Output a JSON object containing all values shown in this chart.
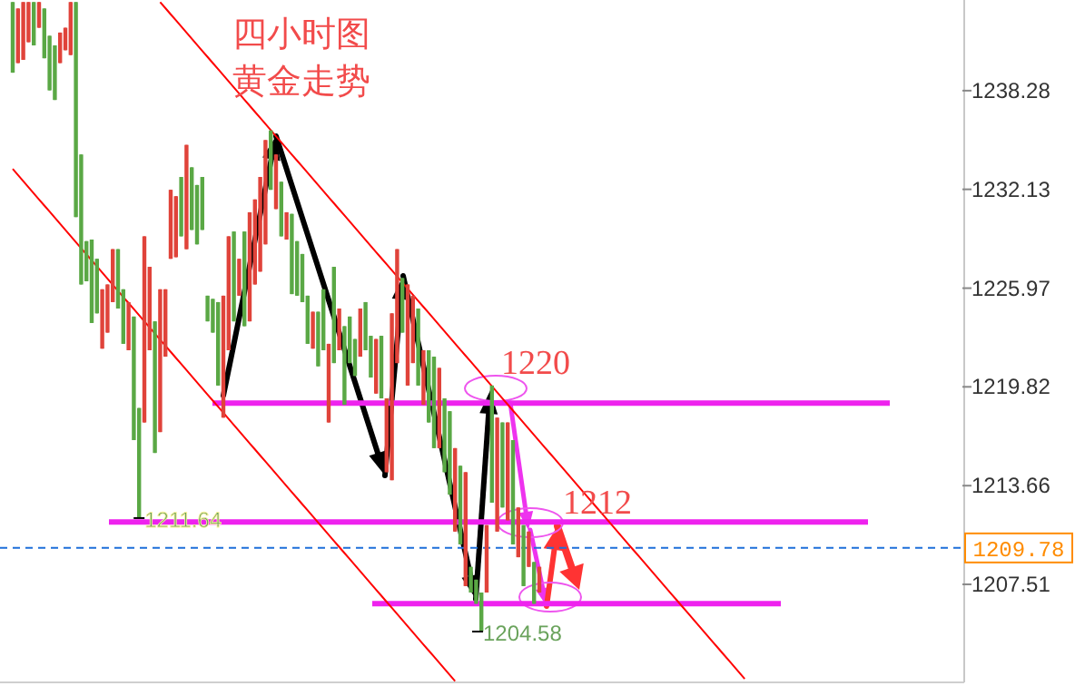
{
  "chart_data": {
    "type": "candlestick",
    "title": "四小时图",
    "subtitle": "黄金走势",
    "categories": [
      null,
      null,
      null,
      null,
      null,
      null,
      null,
      null,
      null,
      null,
      null,
      null,
      null,
      null,
      null,
      null,
      null,
      null,
      null,
      null,
      null,
      null,
      null,
      null,
      null,
      null,
      null,
      null,
      null,
      null,
      null,
      null,
      null,
      null,
      null,
      null,
      null,
      null,
      null,
      null,
      null,
      null,
      null,
      null,
      null,
      null,
      null,
      null,
      null,
      null,
      null,
      null,
      null,
      null,
      null,
      null,
      null,
      null,
      null,
      null,
      null,
      null,
      null,
      null,
      null,
      null,
      null,
      null,
      null,
      null,
      null,
      null,
      null,
      null,
      null,
      null,
      null,
      null,
      null,
      null,
      null,
      null,
      null,
      null,
      null,
      null,
      null,
      null,
      null,
      null,
      null,
      null,
      null,
      null,
      null,
      null,
      null,
      null,
      null,
      null,
      null,
      null,
      null,
      null,
      null,
      null,
      null,
      null,
      null,
      null,
      null,
      null,
      null,
      null,
      null,
      null,
      null,
      null,
      null,
      null,
      null,
      null,
      null,
      null,
      null,
      null,
      null,
      null,
      null,
      null,
      null,
      null,
      null,
      null,
      null,
      null,
      null,
      null,
      null,
      null
    ],
    "ohlc": [
      [
        1239.4,
        1243.8,
        1239.4,
        1243.8
      ],
      [
        1243.4,
        1243.4,
        1240.0,
        1240.0
      ],
      [
        1243.8,
        1243.8,
        1240.2,
        1240.2
      ],
      [
        1243.8,
        1243.8,
        1241.3,
        1241.3
      ],
      [
        1241.1,
        1243.8,
        1241.1,
        1243.8
      ],
      [
        1243.8,
        1243.8,
        1242.2,
        1242.2
      ],
      [
        1240.3,
        1243.4,
        1240.3,
        1243.4
      ],
      [
        1238.3,
        1241.7,
        1238.3,
        1241.7
      ],
      [
        1237.7,
        1241.1,
        1237.7,
        1241.1
      ],
      [
        1241.9,
        1241.9,
        1240.0,
        1240.0
      ],
      [
        1242.2,
        1242.2,
        1240.8,
        1240.8
      ],
      [
        1243.8,
        1243.8,
        1240.5,
        1240.5
      ],
      [
        1230.4,
        1243.8,
        1230.4,
        1243.8
      ],
      [
        1226.2,
        1234.3,
        1226.2,
        1234.3
      ],
      [
        1226.4,
        1228.9,
        1226.4,
        1228.9
      ],
      [
        1223.8,
        1229.0,
        1223.8,
        1229.0
      ],
      [
        1224.4,
        1227.8,
        1224.4,
        1227.8
      ],
      [
        1225.9,
        1225.9,
        1222.2,
        1222.2
      ],
      [
        1226.2,
        1226.2,
        1223.2,
        1223.2
      ],
      [
        1228.4,
        1228.4,
        1225.1,
        1225.1
      ],
      [
        1224.7,
        1228.4,
        1224.7,
        1228.4
      ],
      [
        1222.5,
        1225.9,
        1222.5,
        1225.9
      ],
      [
        1225.1,
        1225.1,
        1222.1,
        1222.1
      ],
      [
        1216.5,
        1224.2,
        1216.5,
        1224.2
      ],
      [
        1211.64,
        1218.5,
        1211.64,
        1218.5
      ],
      [
        1229.2,
        1229.2,
        1217.6,
        1217.6
      ],
      [
        1227.3,
        1227.3,
        1222.1,
        1222.1
      ],
      [
        1215.7,
        1223.9,
        1215.7,
        1223.9
      ],
      [
        1225.9,
        1225.9,
        1217.0,
        1217.0
      ],
      [
        1225.9,
        1225.9,
        1221.7,
        1221.7
      ],
      [
        1232.1,
        1232.1,
        1227.8,
        1227.8
      ],
      [
        1231.7,
        1231.7,
        1227.9,
        1227.9
      ],
      [
        1229.2,
        1232.9,
        1229.2,
        1232.9
      ],
      [
        1234.9,
        1234.9,
        1228.4,
        1228.4
      ],
      [
        1229.6,
        1233.5,
        1229.6,
        1233.5
      ],
      [
        1228.7,
        1232.4,
        1228.7,
        1232.4
      ],
      [
        1229.6,
        1232.9,
        1229.6,
        1232.9
      ],
      [
        1223.9,
        1225.5,
        1223.9,
        1225.5
      ],
      [
        1223.2,
        1225.3,
        1223.2,
        1225.3
      ],
      [
        1219.9,
        1225.1,
        1219.9,
        1225.1
      ],
      [
        1225.5,
        1225.5,
        1217.9,
        1217.9
      ],
      [
        1229.2,
        1229.2,
        1222.1,
        1222.1
      ],
      [
        1223.9,
        1229.5,
        1223.9,
        1229.5
      ],
      [
        1227.8,
        1227.8,
        1225.5,
        1225.5
      ],
      [
        1223.6,
        1229.5,
        1223.6,
        1229.5
      ],
      [
        1230.7,
        1230.7,
        1223.9,
        1223.9
      ],
      [
        1231.5,
        1231.5,
        1226.2,
        1226.2
      ],
      [
        1232.9,
        1232.9,
        1227.0,
        1227.0
      ],
      [
        1235.2,
        1235.2,
        1228.7,
        1228.7
      ],
      [
        1232.1,
        1235.8,
        1232.1,
        1235.8
      ],
      [
        1234.3,
        1234.3,
        1230.9,
        1230.9
      ],
      [
        1229.2,
        1232.6,
        1229.2,
        1232.6
      ],
      [
        1230.7,
        1230.7,
        1229.0,
        1229.0
      ],
      [
        1225.6,
        1230.6,
        1225.6,
        1230.6
      ],
      [
        1225.5,
        1228.9,
        1225.5,
        1228.9
      ],
      [
        1225.1,
        1228.1,
        1225.1,
        1228.1
      ],
      [
        1222.5,
        1225.5,
        1222.5,
        1225.5
      ],
      [
        1224.5,
        1224.5,
        1222.2,
        1222.2
      ],
      [
        1221.1,
        1224.5,
        1221.1,
        1224.5
      ],
      [
        1222.1,
        1225.9,
        1222.1,
        1225.9
      ],
      [
        1222.5,
        1222.5,
        1217.6,
        1217.6
      ],
      [
        1221.3,
        1227.3,
        1221.3,
        1227.3
      ],
      [
        1224.7,
        1224.7,
        1222.1,
        1222.1
      ],
      [
        1218.7,
        1223.6,
        1218.7,
        1223.6
      ],
      [
        1221.3,
        1224.2,
        1221.3,
        1224.2
      ],
      [
        1220.5,
        1222.8,
        1220.5,
        1222.8
      ],
      [
        1224.7,
        1224.7,
        1221.7,
        1221.7
      ],
      [
        1222.1,
        1225.1,
        1222.1,
        1225.1
      ],
      [
        1220.4,
        1223.0,
        1220.4,
        1223.0
      ],
      [
        1222.8,
        1222.8,
        1219.4,
        1219.4
      ],
      [
        1219.1,
        1223.0,
        1219.1,
        1223.0
      ],
      [
        1219.1,
        1219.1,
        1214.5,
        1214.5
      ],
      [
        1224.4,
        1224.4,
        1214.0,
        1214.0
      ],
      [
        1228.4,
        1228.4,
        1221.3,
        1221.3
      ],
      [
        1223.2,
        1226.6,
        1223.2,
        1226.6
      ],
      [
        1226.2,
        1226.2,
        1219.9,
        1219.9
      ],
      [
        1225.5,
        1225.5,
        1221.3,
        1221.3
      ],
      [
        1219.9,
        1224.7,
        1219.9,
        1224.7
      ],
      [
        1222.1,
        1222.1,
        1218.7,
        1218.7
      ],
      [
        1217.6,
        1222.1,
        1217.6,
        1222.1
      ],
      [
        1216.0,
        1221.7,
        1216.0,
        1221.7
      ],
      [
        1221.0,
        1221.0,
        1216.0,
        1216.0
      ],
      [
        1214.5,
        1219.1,
        1214.5,
        1219.1
      ],
      [
        1213.1,
        1218.3,
        1213.1,
        1218.3
      ],
      [
        1216.0,
        1216.0,
        1210.8,
        1210.8
      ],
      [
        1210.0,
        1214.9,
        1210.0,
        1214.9
      ],
      [
        1214.5,
        1214.5,
        1207.4,
        1207.4
      ],
      [
        1207.0,
        1208.6,
        1207.0,
        1208.6
      ],
      [
        1206.3,
        1207.8,
        1206.3,
        1207.8
      ],
      [
        1204.58,
        1207.0,
        1204.58,
        1207.0
      ],
      [
        1211.2,
        1211.2,
        1207.0,
        1207.0
      ],
      [
        1212.6,
        1219.9,
        1212.6,
        1219.9
      ],
      [
        1217.9,
        1217.9,
        1210.8,
        1210.8
      ],
      [
        1212.3,
        1217.6,
        1212.3,
        1217.6
      ],
      [
        1217.6,
        1217.6,
        1211.5,
        1211.5
      ],
      [
        1210.0,
        1216.5,
        1210.0,
        1216.5
      ],
      [
        1212.3,
        1212.3,
        1209.2,
        1209.2
      ],
      [
        1207.4,
        1211.2,
        1207.4,
        1211.2
      ],
      [
        1210.8,
        1210.8,
        1208.6,
        1208.6
      ],
      [
        1206.3,
        1208.9,
        1206.3,
        1208.9
      ],
      [
        1208.6,
        1208.6,
        1207.0,
        1207.0
      ],
      null,
      null,
      null,
      null,
      null,
      null,
      null,
      null,
      null,
      null,
      null,
      null,
      null,
      null,
      null,
      null,
      null,
      null,
      null,
      null,
      null,
      null,
      null,
      null,
      null,
      null,
      null,
      null,
      null,
      null,
      null,
      null,
      null,
      null,
      null,
      null,
      null,
      null,
      null
    ],
    "colors": [
      "#5aa845",
      "#e0433a",
      "#e0433a",
      "#e0433a",
      "#5aa845",
      "#e0433a",
      "#5aa845",
      "#5aa845",
      "#5aa845",
      "#e0433a",
      "#e0433a",
      "#e0433a",
      "#5aa845",
      "#5aa845",
      "#5aa845",
      "#5aa845",
      "#5aa845",
      "#e0433a",
      "#e0433a",
      "#e0433a",
      "#5aa845",
      "#5aa845",
      "#e0433a",
      "#5aa845",
      "#5aa845",
      "#e0433a",
      "#e0433a",
      "#5aa845",
      "#e0433a",
      "#e0433a",
      "#e0433a",
      "#e0433a",
      "#5aa845",
      "#e0433a",
      "#5aa845",
      "#5aa845",
      "#5aa845",
      "#5aa845",
      "#5aa845",
      "#5aa845",
      "#e0433a",
      "#e0433a",
      "#5aa845",
      "#e0433a",
      "#5aa845",
      "#e0433a",
      "#e0433a",
      "#e0433a",
      "#e0433a",
      "#5aa845",
      "#e0433a",
      "#5aa845",
      "#e0433a",
      "#5aa845",
      "#5aa845",
      "#5aa845",
      "#5aa845",
      "#e0433a",
      "#5aa845",
      "#5aa845",
      "#e0433a",
      "#5aa845",
      "#e0433a",
      "#5aa845",
      "#5aa845",
      "#5aa845",
      "#e0433a",
      "#5aa845",
      "#5aa845",
      "#e0433a",
      "#5aa845",
      "#e0433a",
      "#e0433a",
      "#e0433a",
      "#5aa845",
      "#e0433a",
      "#e0433a",
      "#5aa845",
      "#e0433a",
      "#5aa845",
      "#5aa845",
      "#e0433a",
      "#5aa845",
      "#5aa845",
      "#e0433a",
      "#5aa845",
      "#e0433a",
      "#5aa845",
      "#5aa845",
      "#5aa845",
      "#e0433a",
      "#5aa845",
      "#e0433a",
      "#5aa845",
      "#e0433a",
      "#5aa845",
      "#e0433a",
      "#5aa845",
      "#e0433a",
      "#5aa845",
      "#e0433a",
      null,
      null,
      null,
      null,
      null,
      null,
      null,
      null,
      null,
      null,
      null,
      null,
      null,
      null,
      null,
      null,
      null,
      null,
      null,
      null,
      null,
      null,
      null,
      null,
      null,
      null,
      null,
      null,
      null,
      null,
      null,
      null,
      null,
      null,
      null,
      null,
      null,
      null,
      null
    ],
    "series": [
      {
        "type": "line",
        "color": "#ff0000",
        "values": [
          null,
          null,
          null,
          null,
          null,
          null,
          null,
          null,
          null,
          null,
          null,
          null,
          null,
          null,
          null,
          null,
          null,
          null,
          null,
          null,
          null,
          null,
          null,
          null,
          null,
          null,
          null,
          null,
          1243.8,
          1243.42,
          1243.04,
          1242.66,
          1242.28,
          1241.9,
          1241.52,
          1241.14,
          1240.76,
          1240.38,
          1240.0,
          1239.62,
          1239.24,
          1238.86,
          1238.48,
          1238.1,
          1237.72,
          1237.34,
          1236.96,
          1236.58,
          1236.2,
          1235.82,
          1235.44,
          1235.06,
          1234.68,
          1234.3,
          1233.92,
          1233.54,
          1233.16,
          1232.78,
          1232.4,
          1232.02,
          1231.64,
          1231.26,
          1230.88,
          1230.5,
          1230.12,
          1229.74,
          1229.36,
          1228.98,
          1228.6,
          1228.22,
          1227.84,
          1227.46,
          1227.08,
          1226.7,
          1226.32,
          1225.94,
          1225.56,
          1225.18,
          1224.8,
          1224.42,
          1224.04,
          1223.66,
          1223.28,
          1222.9,
          1222.52,
          1222.14,
          1221.76,
          1221.38,
          1221.0,
          1220.62,
          1220.24,
          1219.86,
          1219.48,
          1219.1,
          1218.72,
          1218.34,
          1217.96,
          1217.58,
          1217.2,
          1216.82,
          1216.44,
          1216.06,
          1215.68,
          1215.3,
          1214.92,
          1214.54,
          1214.16,
          1213.78,
          1213.4,
          1213.02,
          1212.64,
          1212.26,
          1211.88,
          1211.5,
          1211.12,
          1210.74,
          1210.36,
          1209.98,
          1209.6,
          1209.22,
          1208.84,
          1208.46,
          1208.08,
          1207.7,
          1207.32,
          1206.94,
          1206.56,
          1206.18,
          1205.8,
          1205.42,
          1205.04,
          1204.66,
          1204.28,
          1203.9,
          1203.52,
          1203.14,
          1202.76,
          1202.38,
          1202.0,
          1201.62
        ]
      },
      {
        "type": "line",
        "color": "#ff0000",
        "values": [
          1233.4,
          1233.02,
          1232.64,
          1232.26,
          1231.88,
          1231.5,
          1231.12,
          1230.74,
          1230.36,
          1229.98,
          1229.6,
          1229.22,
          1228.84,
          1228.46,
          1228.08,
          1227.7,
          1227.32,
          1226.94,
          1226.56,
          1226.18,
          1225.8,
          1225.42,
          1225.04,
          1224.66,
          1224.28,
          1223.9,
          1223.52,
          1223.14,
          1222.76,
          1222.38,
          1222.0,
          1221.62,
          1221.24,
          1220.86,
          1220.48,
          1220.1,
          1219.72,
          1219.34,
          1218.96,
          1218.58,
          1218.2,
          1217.82,
          1217.44,
          1217.06,
          1216.68,
          1216.3,
          1215.92,
          1215.54,
          1215.16,
          1214.78,
          1214.4,
          1214.02,
          1213.64,
          1213.26,
          1212.88,
          1212.5,
          1212.12,
          1211.74,
          1211.36,
          1210.98,
          1210.6,
          1210.22,
          1209.84,
          1209.46,
          1209.08,
          1208.7,
          1208.32,
          1207.94,
          1207.56,
          1207.18,
          1206.8,
          1206.42,
          1206.04,
          1205.66,
          1205.28,
          1204.9,
          1204.52,
          1204.14,
          1203.76,
          1203.38,
          1203.0,
          1202.62,
          1202.24,
          1201.86,
          1201.48,
          null,
          null,
          null,
          null,
          null,
          null,
          null,
          null,
          null,
          null,
          null,
          null,
          null,
          null,
          null,
          null,
          null,
          null,
          null,
          null,
          null,
          null,
          null,
          null,
          null,
          null,
          null,
          null,
          null,
          null,
          null,
          null,
          null,
          null,
          null,
          null,
          null,
          null,
          null,
          null,
          null,
          null,
          null,
          null,
          null,
          null,
          null,
          null,
          null,
          null,
          null,
          null,
          null,
          null,
          null
        ]
      }
    ],
    "ylim": [
      1201.4,
      1243.93
    ],
    "yticks": [
      1238.28,
      1232.13,
      1225.97,
      1219.82,
      1213.66,
      1207.51
    ],
    "ref_lines": [
      {
        "axis": "y",
        "value": 1218.8,
        "color": "#ee22ee"
      },
      {
        "axis": "y",
        "value": 1211.4,
        "color": "#ee22ee"
      },
      {
        "axis": "y",
        "value": 1206.3,
        "color": "#ee22ee"
      },
      {
        "axis": "y",
        "value": 1209.78,
        "label": "1209.78",
        "color": "#1e6fd9",
        "line_style": "dashed"
      }
    ],
    "annotations": [
      {
        "text": "1211.64",
        "y": 1211.64
      },
      "1204.58",
      "1220",
      "1212"
    ]
  }
}
